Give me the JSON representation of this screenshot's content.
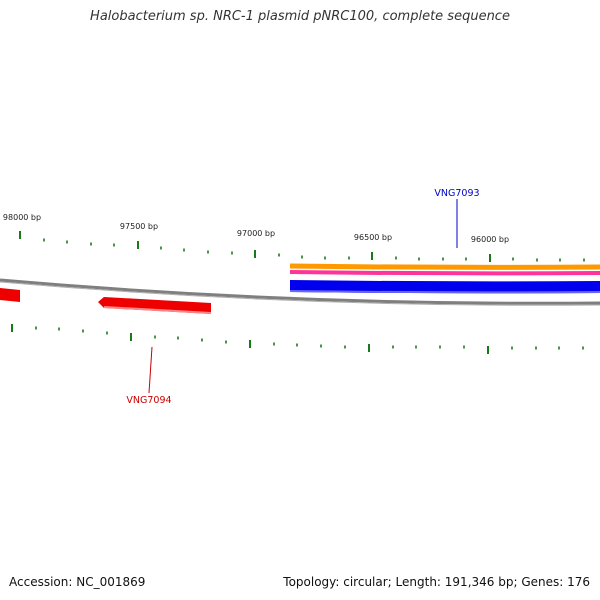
{
  "title": "Halobacterium sp. NRC-1 plasmid pNRC100, complete sequence",
  "footer": {
    "accession": "Accession: NC_001869",
    "stats": "Topology: circular; Length: 191,346 bp; Genes: 176"
  },
  "scale_labels": [
    "98000 bp",
    "97500 bp",
    "97000 bp",
    "96500 bp",
    "96000 bp"
  ],
  "genes": [
    {
      "name": "VNG7093",
      "color": "#0000cc",
      "strand": "forward"
    },
    {
      "name": "VNG7094",
      "color": "#cc0000",
      "strand": "reverse"
    }
  ],
  "colors": {
    "backbone": "#7f7f7f",
    "ticks": "#1a7a1a",
    "forward_gene": "#0000ee",
    "reverse_gene": "#ee0000",
    "track_orange": "#ff9900",
    "track_magenta": "#ff3399"
  }
}
